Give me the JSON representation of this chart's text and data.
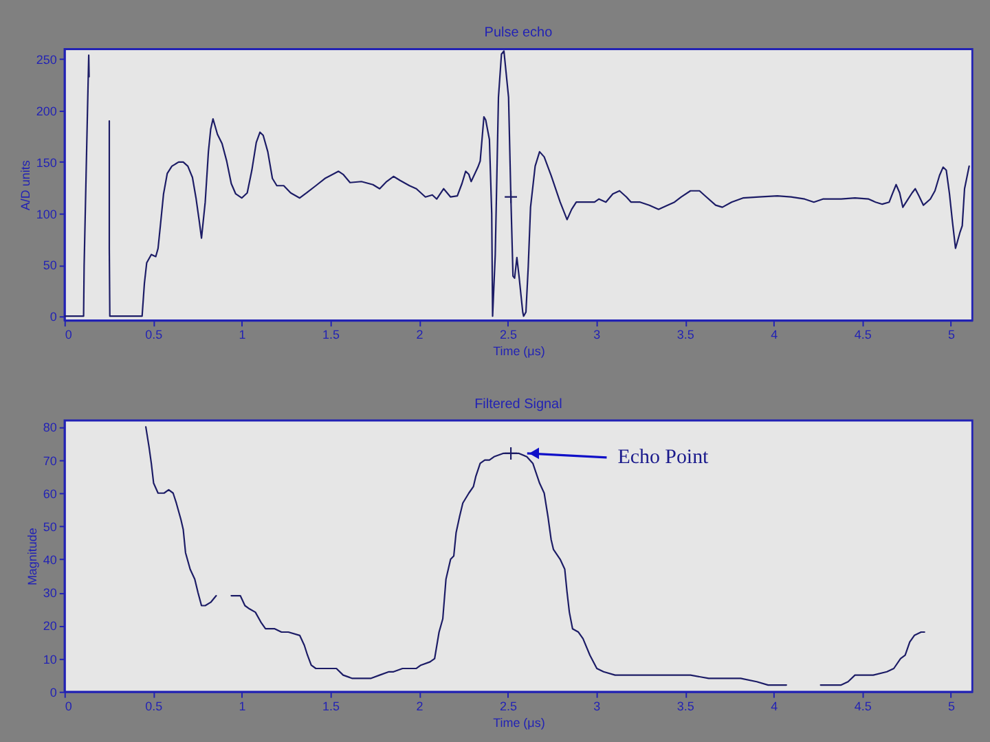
{
  "chart_data": [
    {
      "type": "line",
      "title": "Pulse echo",
      "xlabel": "Time (μs)",
      "ylabel": "A/D units",
      "xlim": [
        0,
        5.12
      ],
      "ylim": [
        -4,
        260
      ],
      "xticks": [
        0,
        0.5,
        1,
        1.5,
        2,
        2.5,
        3,
        3.5,
        4,
        4.5,
        5
      ],
      "yticks": [
        0,
        50,
        100,
        150,
        200,
        250
      ],
      "line_style": "solid",
      "series": [
        {
          "color": "#1c1c66",
          "x": [
            0,
            0.108,
            0.111,
            0.129,
            0.137,
            0.139,
            0.2,
            0.253,
            0.253,
            0.256,
            0.438,
            0.451,
            0.464,
            0.49,
            0.515,
            0.528,
            0.541,
            0.559,
            0.58,
            0.606,
            0.644,
            0.67,
            0.696,
            0.722,
            0.742,
            0.76,
            0.773,
            0.794,
            0.812,
            0.825,
            0.838,
            0.863,
            0.889,
            0.915,
            0.941,
            0.966,
            1.0,
            1.031,
            1.057,
            1.082,
            1.103,
            1.121,
            1.147,
            1.173,
            1.198,
            1.237,
            1.276,
            1.327,
            1.366,
            1.418,
            1.469,
            1.546,
            1.572,
            1.611,
            1.675,
            1.74,
            1.778,
            1.817,
            1.856,
            1.894,
            1.946,
            1.985,
            2.036,
            2.075,
            2.1,
            2.139,
            2.178,
            2.216,
            2.242,
            2.263,
            2.281,
            2.294,
            2.332,
            2.345,
            2.366,
            2.376,
            2.397,
            2.41,
            2.415,
            2.43,
            2.448,
            2.465,
            2.479,
            2.505,
            2.518,
            2.53,
            2.539,
            2.552,
            2.564,
            2.585,
            2.59,
            2.603,
            2.616,
            2.629,
            2.655,
            2.68,
            2.706,
            2.745,
            2.796,
            2.835,
            2.861,
            2.887,
            2.938,
            2.99,
            3.015,
            3.054,
            3.093,
            3.131,
            3.17,
            3.196,
            3.247,
            3.299,
            3.351,
            3.389,
            3.441,
            3.479,
            3.531,
            3.582,
            3.621,
            3.673,
            3.711,
            3.763,
            3.827,
            3.918,
            4.021,
            4.098,
            4.175,
            4.227,
            4.278,
            4.381,
            4.459,
            4.536,
            4.575,
            4.613,
            4.652,
            4.67,
            4.691,
            4.711,
            4.729,
            4.755,
            4.781,
            4.799,
            4.82,
            4.845,
            4.884,
            4.91,
            4.936,
            4.956,
            4.974,
            4.992,
            5.008,
            5.026,
            5.052,
            5.064,
            5.077,
            5.103
          ],
          "values": [
            0,
            0,
            49,
            192,
            254,
            233,
            null,
            190,
            66,
            0,
            0,
            32,
            52,
            60,
            58,
            66,
            88,
            119,
            139,
            146,
            150,
            150,
            146,
            135,
            115,
            93,
            76,
            111,
            160,
            182,
            192,
            177,
            168,
            151,
            129,
            119,
            115,
            120,
            142,
            169,
            179,
            176,
            160,
            134,
            127,
            127,
            120,
            115,
            120,
            127,
            134,
            141,
            138,
            130,
            131,
            128,
            124,
            131,
            136,
            132,
            127,
            124,
            116,
            118,
            114,
            124,
            116,
            117,
            129,
            141,
            138,
            131,
            145,
            151,
            194,
            191,
            172,
            100,
            0,
            60,
            213,
            255,
            258,
            213,
            116,
            39,
            37,
            57,
            39,
            4,
            0,
            4,
            48,
            106,
            146,
            160,
            155,
            137,
            111,
            94,
            104,
            111,
            111,
            111,
            114,
            111,
            119,
            122,
            116,
            111,
            111,
            108,
            104,
            107,
            111,
            116,
            122,
            122,
            116,
            108,
            106,
            111,
            115,
            116,
            117,
            116,
            114,
            111,
            114,
            114,
            115,
            114,
            111,
            109,
            111,
            119,
            128,
            120,
            106,
            113,
            120,
            124,
            117,
            108,
            114,
            122,
            137,
            145,
            142,
            119,
            93,
            66,
            82,
            88,
            124,
            146
          ]
        },
        {
          "type": "scatter",
          "marker": "cross",
          "color": "#1c1c66",
          "x": [
            2.518
          ],
          "values": [
            116
          ]
        }
      ]
    },
    {
      "type": "line",
      "title": "Filtered Signal",
      "xlabel": "Time (μs)",
      "ylabel": "Magnitude",
      "xlim": [
        0,
        5.12
      ],
      "ylim": [
        0,
        82
      ],
      "xticks": [
        0,
        0.5,
        1,
        1.5,
        2,
        2.5,
        3,
        3.5,
        4,
        4.5,
        5
      ],
      "yticks": [
        0,
        10,
        20,
        30,
        40,
        50,
        60,
        70,
        80
      ],
      "line_style": "solid",
      "annotations": [
        {
          "text": "Echo Point",
          "x": 2.61,
          "y": 72
        }
      ],
      "series": [
        {
          "color": "#1c1c66",
          "x": [
            0.459,
            0.477,
            0.49,
            0.503,
            0.528,
            0.562,
            0.588,
            0.613,
            0.631,
            0.657,
            0.67,
            0.683,
            0.709,
            0.735,
            0.753,
            0.773,
            0.794,
            0.825,
            0.856,
            0.9,
            0.941,
            0.992,
            1.018,
            1.044,
            1.077,
            1.108,
            1.134,
            1.186,
            1.224,
            1.263,
            1.327,
            1.353,
            1.371,
            1.392,
            1.418,
            1.495,
            1.534,
            1.572,
            1.624,
            1.675,
            1.727,
            1.778,
            1.83,
            1.856,
            1.907,
            1.985,
            2.01,
            2.062,
            2.088,
            2.113,
            2.134,
            2.152,
            2.178,
            2.196,
            2.209,
            2.229,
            2.247,
            2.281,
            2.307,
            2.32,
            2.345,
            2.371,
            2.397,
            2.423,
            2.474,
            2.518,
            2.564,
            2.608,
            2.642,
            2.68,
            2.706,
            2.727,
            2.745,
            2.758,
            2.796,
            2.822,
            2.835,
            2.848,
            2.866,
            2.899,
            2.925,
            2.964,
            3.003,
            3.041,
            3.106,
            3.196,
            3.273,
            3.325,
            3.402,
            3.531,
            3.634,
            3.711,
            3.814,
            3.905,
            3.969,
            4.072,
            4.18,
            4.265,
            4.381,
            4.42,
            4.459,
            4.52,
            4.562,
            4.639,
            4.678,
            4.716,
            4.742,
            4.768,
            4.794,
            4.832,
            4.851
          ],
          "values": [
            80,
            74,
            69,
            63,
            60,
            60,
            61,
            60,
            57,
            52,
            49,
            42,
            37,
            34,
            30,
            26,
            26,
            27,
            29,
            null,
            29,
            29,
            26,
            25,
            24,
            21,
            19,
            19,
            18,
            18,
            17,
            14,
            11,
            8,
            7,
            7,
            7,
            5,
            4,
            4,
            4,
            5,
            6,
            6,
            7,
            7,
            8,
            9,
            10,
            18,
            22,
            34,
            40,
            41,
            48,
            53,
            57,
            60,
            62,
            65,
            69,
            70,
            70,
            71,
            72,
            72,
            72,
            71,
            69,
            63,
            60,
            53,
            46,
            43,
            40,
            37,
            30,
            24,
            19,
            18,
            16,
            11,
            7,
            6,
            5,
            5,
            5,
            5,
            5,
            5,
            4,
            4,
            4,
            3,
            2,
            2,
            null,
            2,
            2,
            3,
            5,
            5,
            5,
            6,
            7,
            10,
            11,
            15,
            17,
            18,
            18
          ]
        },
        {
          "type": "scatter",
          "marker": "cross",
          "color": "#1c1c66",
          "x": [
            2.518
          ],
          "values": [
            72
          ]
        }
      ]
    }
  ]
}
